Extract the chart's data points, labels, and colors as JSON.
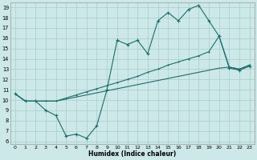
{
  "xlabel": "Humidex (Indice chaleur)",
  "bg_color": "#cce8e8",
  "grid_color": "#aacccc",
  "line_color": "#1a6e6a",
  "xlim": [
    -0.5,
    23.5
  ],
  "ylim": [
    5.7,
    19.5
  ],
  "xticks": [
    0,
    1,
    2,
    3,
    4,
    5,
    6,
    7,
    8,
    9,
    10,
    11,
    12,
    13,
    14,
    15,
    16,
    17,
    18,
    19,
    20,
    21,
    22,
    23
  ],
  "yticks": [
    6,
    7,
    8,
    9,
    10,
    11,
    12,
    13,
    14,
    15,
    16,
    17,
    18,
    19
  ],
  "curve1_x": [
    0,
    1,
    2,
    3,
    4,
    5,
    6,
    7,
    8,
    9,
    10,
    11,
    12,
    13,
    14,
    15,
    16,
    17,
    18,
    19,
    20,
    21,
    22,
    23
  ],
  "curve1_y": [
    10.6,
    9.9,
    9.9,
    9.0,
    8.5,
    6.5,
    6.7,
    6.3,
    7.5,
    11.0,
    15.8,
    15.4,
    15.8,
    14.5,
    17.7,
    18.5,
    17.7,
    18.8,
    19.2,
    17.7,
    16.2,
    13.1,
    12.9,
    13.3
  ],
  "curve2_x": [
    0,
    1,
    2,
    3,
    4,
    5,
    6,
    7,
    8,
    9,
    10,
    11,
    12,
    13,
    14,
    15,
    16,
    17,
    18,
    19,
    20,
    21,
    22,
    23
  ],
  "curve2_y": [
    10.6,
    9.9,
    9.9,
    9.9,
    9.9,
    10.2,
    10.5,
    10.8,
    11.1,
    11.4,
    11.7,
    12.0,
    12.3,
    12.7,
    13.0,
    13.4,
    13.7,
    14.0,
    14.3,
    14.7,
    16.2,
    13.2,
    13.0,
    13.4
  ],
  "curve3_x": [
    0,
    1,
    2,
    3,
    4,
    5,
    6,
    7,
    8,
    9,
    10,
    11,
    12,
    13,
    14,
    15,
    16,
    17,
    18,
    19,
    20,
    21,
    22,
    23
  ],
  "curve3_y": [
    10.6,
    9.9,
    9.9,
    9.9,
    9.9,
    10.1,
    10.3,
    10.5,
    10.7,
    10.9,
    11.1,
    11.3,
    11.5,
    11.7,
    11.9,
    12.1,
    12.3,
    12.5,
    12.7,
    12.9,
    13.1,
    13.2,
    13.0,
    13.4
  ]
}
